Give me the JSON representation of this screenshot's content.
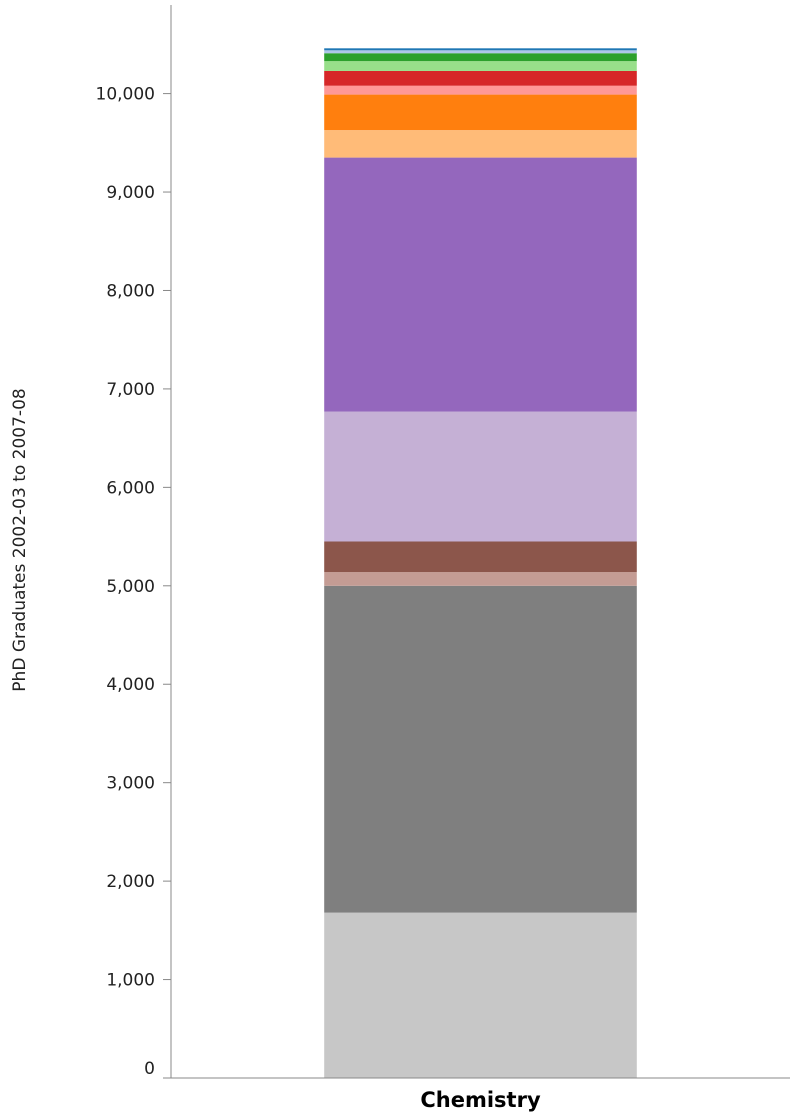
{
  "chart_data": {
    "type": "bar",
    "stacked": true,
    "categories": [
      "Chemistry"
    ],
    "ylabel": "PhD Graduates 2002-03 to 2007-08",
    "xlabel": "",
    "ylim": [
      0,
      10900
    ],
    "yticks": [
      0,
      1000,
      2000,
      3000,
      4000,
      5000,
      6000,
      7000,
      8000,
      9000,
      10000
    ],
    "ytick_labels": [
      "0",
      "1,000",
      "2,000",
      "3,000",
      "4,000",
      "5,000",
      "6,000",
      "7,000",
      "8,000",
      "9,000",
      "10,000"
    ],
    "grid": false,
    "legend": "none",
    "series": [
      {
        "color": "#c7c7c7",
        "values": [
          1680
        ]
      },
      {
        "color": "#7f7f7f",
        "values": [
          3320
        ]
      },
      {
        "color": "#c49c94",
        "values": [
          140
        ]
      },
      {
        "color": "#8c564b",
        "values": [
          310
        ]
      },
      {
        "color": "#c5b0d5",
        "values": [
          1320
        ]
      },
      {
        "color": "#9467bd",
        "values": [
          2580
        ]
      },
      {
        "color": "#ffbb78",
        "values": [
          280
        ]
      },
      {
        "color": "#ff7f0e",
        "values": [
          360
        ]
      },
      {
        "color": "#ff9896",
        "values": [
          90
        ]
      },
      {
        "color": "#d62728",
        "values": [
          150
        ]
      },
      {
        "color": "#98df8a",
        "values": [
          100
        ]
      },
      {
        "color": "#2ca02c",
        "values": [
          80
        ]
      },
      {
        "color": "#aec7e8",
        "values": [
          30
        ]
      },
      {
        "color": "#1f77b4",
        "values": [
          20
        ]
      }
    ]
  }
}
